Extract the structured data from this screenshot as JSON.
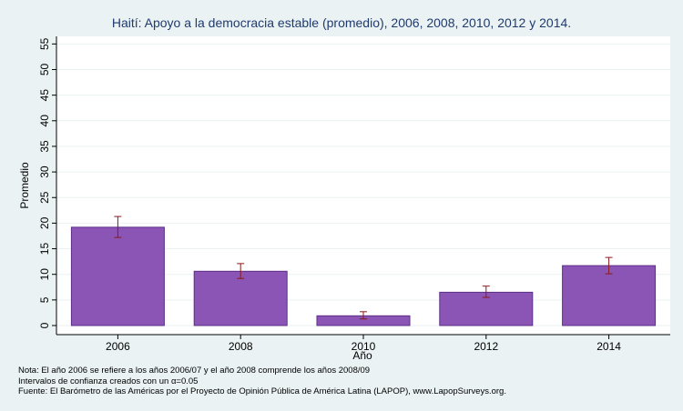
{
  "chart_data": {
    "type": "bar",
    "title": "Haití: Apoyo a la democracia estable (promedio), 2006, 2008, 2010, 2012 y 2014.",
    "xlabel": "Año",
    "ylabel": "Promedio",
    "categories": [
      "2006",
      "2008",
      "2010",
      "2012",
      "2014"
    ],
    "values": [
      19.2,
      10.6,
      1.9,
      6.5,
      11.7
    ],
    "ci_low": [
      17.2,
      9.2,
      1.3,
      5.5,
      10.1
    ],
    "ci_high": [
      21.3,
      12.1,
      2.7,
      7.7,
      13.3
    ],
    "ylim": [
      0,
      57
    ],
    "yticks": [
      0,
      5,
      10,
      15,
      20,
      25,
      30,
      35,
      40,
      45,
      50,
      55
    ],
    "grid": true,
    "legend": "none",
    "bar_color": "#8a55b5",
    "error_bar_color": "#8b1a1a"
  },
  "notes": {
    "line1": "Nota: El año 2006 se refiere a los años 2006/07 y el año 2008 comprende los años 2008/09",
    "line2": "Intervalos de confianza creados con un α=0.05",
    "line3": "Fuente: El Barómetro de las Américas por el Proyecto de Opinión Pública de América Latina (LAPOP), www.LapopSurveys.org."
  }
}
